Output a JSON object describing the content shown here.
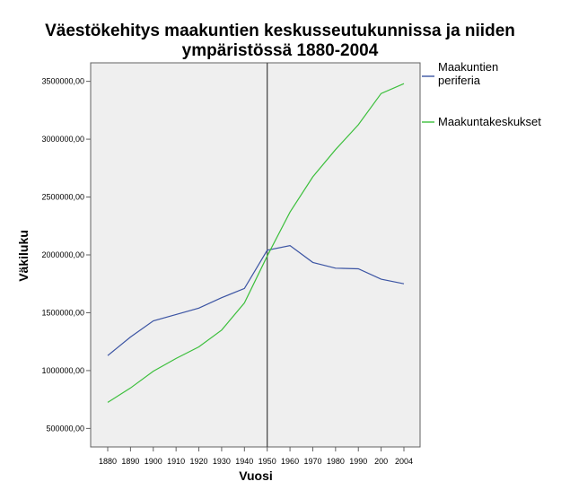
{
  "chart_data": {
    "type": "line",
    "title_lines": [
      "Väestökehitys maakuntien keskusseutukunnissa ja niiden",
      "ympäristössä 1880-2004"
    ],
    "xlabel": "Vuosi",
    "ylabel": "Väkiluku",
    "categories": [
      "1880",
      "1890",
      "1900",
      "1910",
      "1920",
      "1930",
      "1940",
      "1950",
      "1960",
      "1970",
      "1980",
      "1990",
      "200",
      "2004"
    ],
    "yticks": [
      500000,
      1000000,
      1500000,
      2000000,
      2500000,
      3000000,
      3500000
    ],
    "ytick_labels": [
      "500000,00",
      "1000000,00",
      "1500000,00",
      "2000000,00",
      "2500000,00",
      "3000000,00",
      "3500000,00"
    ],
    "ylim": [
      340000,
      3660000
    ],
    "reference_line_x": "1950",
    "grid": false,
    "legend_position": "right",
    "series": [
      {
        "name_lines": [
          "Maakuntien",
          "periferia"
        ],
        "color": "#3b54a3",
        "values": [
          1130000,
          1290000,
          1430000,
          1485000,
          1540000,
          1630000,
          1710000,
          2040000,
          2080000,
          1935000,
          1885000,
          1880000,
          1790000,
          1750000
        ]
      },
      {
        "name_lines": [
          "Maakuntakeskukset"
        ],
        "color": "#3cbf3c",
        "values": [
          725000,
          850000,
          995000,
          1105000,
          1205000,
          1350000,
          1585000,
          1990000,
          2370000,
          2675000,
          2910000,
          3125000,
          3395000,
          3480000
        ]
      }
    ],
    "plot_background": "#efefef",
    "reference_line_color": "#404040"
  }
}
